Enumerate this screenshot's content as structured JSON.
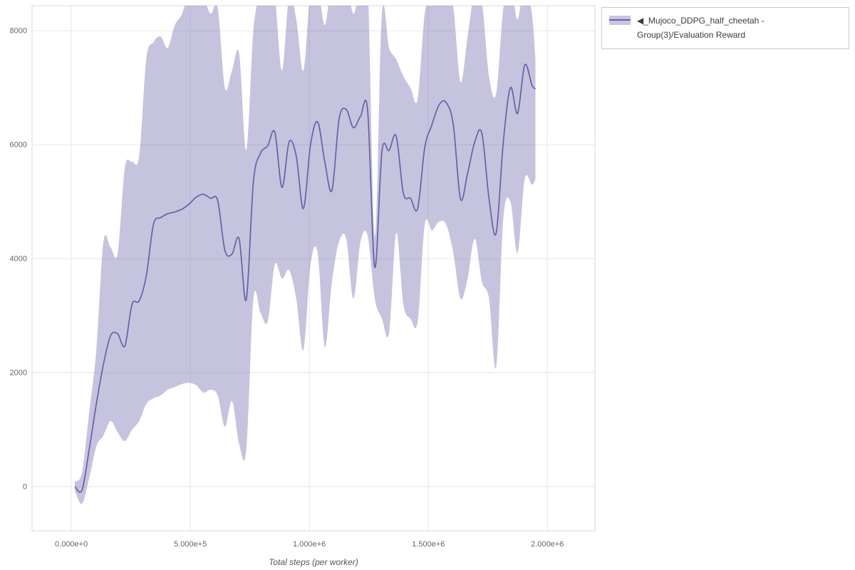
{
  "legend": {
    "label": "◀_Mujoco_DDPG_half_cheetah - Group(3)/Evaluation Reward",
    "swatch_line_color": "#6760a8",
    "swatch_band_color": "#c9c4e2"
  },
  "chart_data": {
    "type": "line",
    "title": "",
    "xlabel": "Total steps (per worker)",
    "ylabel": "",
    "legend_position": "top-right",
    "grid": true,
    "xlim": [
      -165000,
      2200000
    ],
    "ylim": [
      -775,
      8440
    ],
    "x_ticks": [
      {
        "value": 0,
        "label": "0.000e+0"
      },
      {
        "value": 500000,
        "label": "5.000e+5"
      },
      {
        "value": 1000000,
        "label": "1.000e+6"
      },
      {
        "value": 1500000,
        "label": "1.500e+6"
      },
      {
        "value": 2000000,
        "label": "2.000e+6"
      }
    ],
    "y_ticks": [
      {
        "value": 0,
        "label": "0"
      },
      {
        "value": 2000,
        "label": "2000"
      },
      {
        "value": 4000,
        "label": "4000"
      },
      {
        "value": 6000,
        "label": "6000"
      },
      {
        "value": 8000,
        "label": "8000"
      }
    ],
    "series": [
      {
        "name": "◀_Mujoco_DDPG_half_cheetah - Group(3)/Evaluation Reward",
        "color": "#6760a8",
        "band_color": "#6760a8",
        "band_opacity": 0.38,
        "x": [
          15000,
          45000,
          75000,
          105000,
          135000,
          165000,
          195000,
          225000,
          255000,
          285000,
          315000,
          345000,
          375000,
          405000,
          435000,
          465000,
          495000,
          525000,
          555000,
          585000,
          615000,
          645000,
          675000,
          705000,
          735000,
          765000,
          795000,
          825000,
          855000,
          885000,
          915000,
          945000,
          975000,
          1005000,
          1035000,
          1065000,
          1095000,
          1125000,
          1155000,
          1185000,
          1215000,
          1245000,
          1275000,
          1305000,
          1335000,
          1365000,
          1395000,
          1425000,
          1455000,
          1485000,
          1515000,
          1545000,
          1575000,
          1605000,
          1635000,
          1665000,
          1695000,
          1725000,
          1755000,
          1785000,
          1815000,
          1845000,
          1875000,
          1905000,
          1935000,
          1950000
        ],
        "mean": [
          0,
          -60,
          650,
          1450,
          2150,
          2650,
          2680,
          2470,
          3200,
          3260,
          3700,
          4600,
          4720,
          4790,
          4820,
          4870,
          4960,
          5080,
          5130,
          5060,
          5020,
          4150,
          4080,
          4350,
          3280,
          5350,
          5850,
          5980,
          6220,
          5250,
          6050,
          5800,
          4880,
          6000,
          6400,
          5700,
          5200,
          6450,
          6620,
          6300,
          6500,
          6600,
          3850,
          5880,
          5900,
          6150,
          5150,
          5060,
          4880,
          5950,
          6350,
          6700,
          6740,
          6350,
          5050,
          5500,
          6050,
          6200,
          5050,
          4450,
          6050,
          7000,
          6550,
          7400,
          7050,
          6980
        ],
        "lower": [
          -80,
          -300,
          150,
          700,
          900,
          1150,
          950,
          800,
          1000,
          1150,
          1450,
          1550,
          1600,
          1700,
          1750,
          1800,
          1820,
          1780,
          1650,
          1700,
          1600,
          1050,
          1500,
          750,
          650,
          3300,
          3050,
          2900,
          3900,
          3650,
          3800,
          3300,
          2400,
          3900,
          4100,
          2450,
          3600,
          4300,
          4350,
          3300,
          4300,
          4400,
          3300,
          2950,
          2700,
          4450,
          3200,
          2950,
          2900,
          4600,
          4500,
          4650,
          4600,
          4100,
          3300,
          3650,
          4350,
          3600,
          3300,
          2100,
          4700,
          5000,
          4100,
          5400,
          5300,
          5400
        ],
        "upper": [
          90,
          250,
          1300,
          2400,
          4300,
          4200,
          4100,
          5600,
          5700,
          5800,
          7500,
          7800,
          7900,
          7700,
          8100,
          8300,
          8700,
          8900,
          8600,
          8300,
          8400,
          7000,
          7300,
          7600,
          5900,
          8000,
          8700,
          9000,
          8600,
          7300,
          8600,
          8200,
          7300,
          8700,
          8800,
          8100,
          8900,
          8800,
          8900,
          8300,
          8800,
          8800,
          4400,
          8300,
          7700,
          7500,
          7200,
          7000,
          6800,
          8300,
          8600,
          8900,
          8700,
          8400,
          7100,
          7900,
          8700,
          8500,
          7200,
          6900,
          8400,
          8800,
          8200,
          8900,
          8300,
          7500
        ]
      }
    ]
  }
}
